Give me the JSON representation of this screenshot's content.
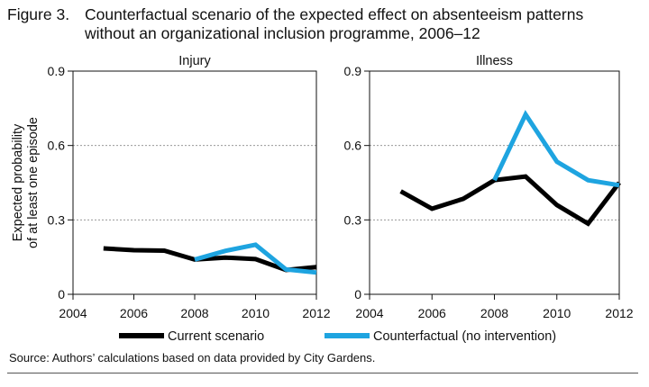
{
  "title": {
    "number": "Figure 3.",
    "line1": "Counterfactual scenario of the expected effect on absenteeism patterns",
    "line2": "without an organizational inclusion programme, 2006–12"
  },
  "source": "Source:  Authors’ calculations based on data provided by City Gardens.",
  "colors": {
    "current": "#000000",
    "counterfactual": "#1ea4e0",
    "grid": "#888888"
  },
  "chart_data": [
    {
      "type": "line",
      "title": "Injury",
      "ylabel": "Expected probability of at least one episode",
      "xlim": [
        2004,
        2012
      ],
      "ylim": [
        0,
        0.9
      ],
      "xticks": [
        "2004",
        "2006",
        "2008",
        "2010",
        "2012"
      ],
      "yticks": [
        "0",
        "0.3",
        "0.6",
        "0.9"
      ],
      "grid": "horizontal",
      "series": [
        {
          "name": "Current scenario",
          "x": [
            2005,
            2006,
            2007,
            2008,
            2009,
            2010,
            2011,
            2012
          ],
          "y": [
            0.185,
            0.178,
            0.176,
            0.14,
            0.148,
            0.142,
            0.098,
            0.11
          ]
        },
        {
          "name": "Counterfactual (no intervention)",
          "x": [
            2008,
            2009,
            2010,
            2011,
            2012
          ],
          "y": [
            0.14,
            0.175,
            0.2,
            0.1,
            0.088
          ]
        }
      ]
    },
    {
      "type": "line",
      "title": "Illness",
      "ylabel": "",
      "xlim": [
        2004,
        2012
      ],
      "ylim": [
        0,
        0.9
      ],
      "xticks": [
        "2004",
        "2006",
        "2008",
        "2010",
        "2012"
      ],
      "yticks": [
        "0",
        "0.3",
        "0.6",
        "0.9"
      ],
      "grid": "horizontal",
      "series": [
        {
          "name": "Current scenario",
          "x": [
            2005,
            2006,
            2007,
            2008,
            2009,
            2010,
            2011,
            2012
          ],
          "y": [
            0.415,
            0.345,
            0.385,
            0.46,
            0.475,
            0.36,
            0.285,
            0.45
          ]
        },
        {
          "name": "Counterfactual (no intervention)",
          "x": [
            2008,
            2009,
            2010,
            2011,
            2012
          ],
          "y": [
            0.46,
            0.725,
            0.535,
            0.46,
            0.44
          ]
        }
      ]
    }
  ],
  "legend": [
    {
      "label": "Current scenario",
      "color": "#000000"
    },
    {
      "label": "Counterfactual (no intervention)",
      "color": "#1ea4e0"
    }
  ]
}
